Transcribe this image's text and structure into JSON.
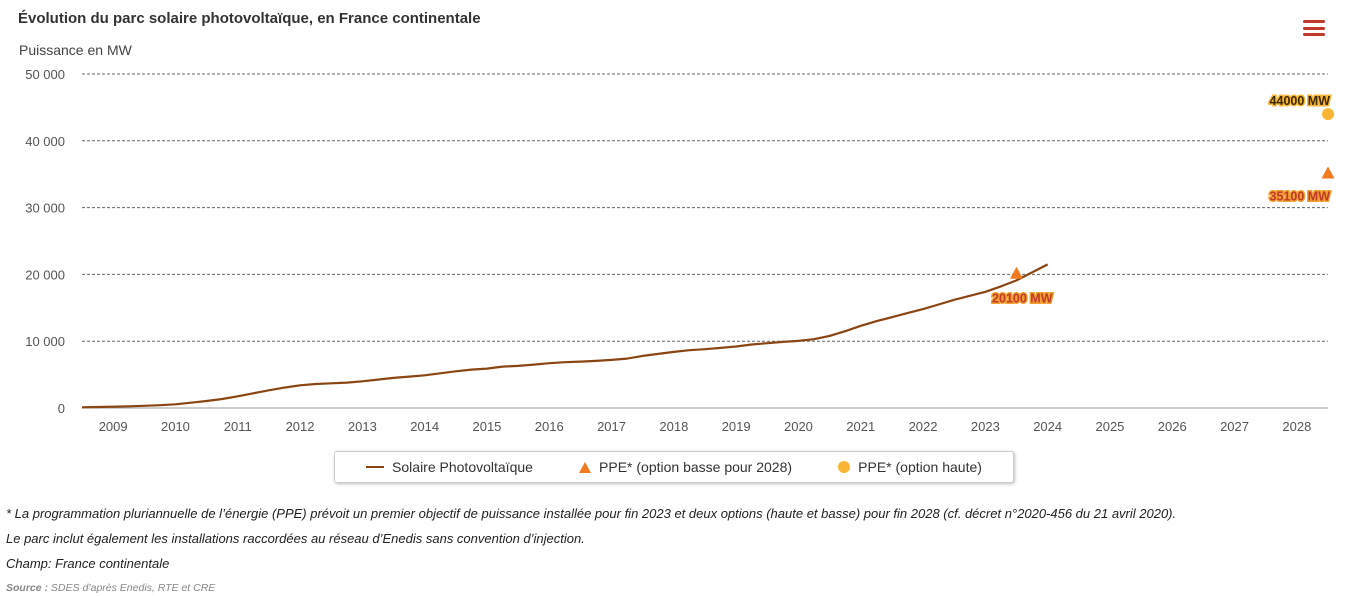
{
  "header": {
    "title": "Évolution du parc solaire photovoltaïque, en France continentale",
    "menu_icon": "hamburger-menu-icon"
  },
  "colors": {
    "line": "#8b4513",
    "triangle": "#f47a20",
    "dot": "#f9b533",
    "grid": "#666666",
    "label_text": "#c0392b"
  },
  "chart_data": {
    "type": "line",
    "title": "Évolution du parc solaire photovoltaïque, en France continentale",
    "ylabel": "Puissance en MW",
    "xlabel": "",
    "ylim": [
      0,
      50000
    ],
    "yticks": [
      0,
      10000,
      20000,
      30000,
      40000,
      50000
    ],
    "ytick_labels": [
      "0",
      "10 000",
      "20 000",
      "30 000",
      "40 000",
      "50 000"
    ],
    "xlim": [
      2008.5,
      2028.5
    ],
    "xticks": [
      2009,
      2010,
      2011,
      2012,
      2013,
      2014,
      2015,
      2016,
      2017,
      2018,
      2019,
      2020,
      2021,
      2022,
      2023,
      2024,
      2025,
      2026,
      2027,
      2028
    ],
    "grid": true,
    "series": [
      {
        "name": "Solaire Photovoltaïque",
        "kind": "line",
        "x": [
          2008.5,
          2008.75,
          2009.0,
          2009.25,
          2009.5,
          2009.75,
          2010.0,
          2010.25,
          2010.5,
          2010.75,
          2011.0,
          2011.25,
          2011.5,
          2011.75,
          2012.0,
          2012.25,
          2012.5,
          2012.75,
          2013.0,
          2013.25,
          2013.5,
          2013.75,
          2014.0,
          2014.25,
          2014.5,
          2014.75,
          2015.0,
          2015.25,
          2015.5,
          2015.75,
          2016.0,
          2016.25,
          2016.5,
          2016.75,
          2017.0,
          2017.25,
          2017.5,
          2017.75,
          2018.0,
          2018.25,
          2018.5,
          2018.75,
          2019.0,
          2019.25,
          2019.5,
          2019.75,
          2020.0,
          2020.25,
          2020.5,
          2020.75,
          2021.0,
          2021.25,
          2021.5,
          2021.75,
          2022.0,
          2022.25,
          2022.5,
          2022.75,
          2023.0,
          2023.25,
          2023.5,
          2023.75,
          2024.0
        ],
        "values": [
          100,
          150,
          200,
          250,
          330,
          420,
          550,
          800,
          1050,
          1350,
          1750,
          2200,
          2650,
          3050,
          3400,
          3600,
          3700,
          3800,
          4000,
          4250,
          4500,
          4700,
          4900,
          5200,
          5500,
          5750,
          5900,
          6200,
          6300,
          6500,
          6700,
          6850,
          6950,
          7050,
          7200,
          7400,
          7800,
          8100,
          8400,
          8650,
          8800,
          9000,
          9200,
          9500,
          9700,
          9900,
          10050,
          10300,
          10800,
          11500,
          12300,
          13000,
          13600,
          14200,
          14800,
          15500,
          16200,
          16800,
          17400,
          18200,
          19100,
          20300,
          21500
        ]
      },
      {
        "name": "PPE* (option basse pour 2028)",
        "kind": "triangle",
        "points": [
          {
            "x": 2023.5,
            "y": 20100,
            "label": "20100 MW"
          },
          {
            "x": 2028.5,
            "y": 35100,
            "label": "35100 MW"
          }
        ]
      },
      {
        "name": "PPE* (option haute)",
        "kind": "dot",
        "points": [
          {
            "x": 2028.5,
            "y": 44000,
            "label": "44000 MW"
          }
        ]
      }
    ]
  },
  "legend": {
    "items": [
      {
        "label": "Solaire Photovoltaïque"
      },
      {
        "label": "PPE* (option basse pour 2028)"
      },
      {
        "label": "PPE* (option haute)"
      }
    ]
  },
  "notes": {
    "line1": "* La programmation pluriannuelle de l’énergie (PPE) prévoit un premier objectif de puissance installée pour fin 2023 et deux options (haute et basse) pour fin 2028 (cf. décret n°2020-456 du 21 avril 2020).",
    "line2": "Le parc inclut également les installations raccordées au réseau d’Enedis sans convention d’injection.",
    "line3": "Champ: France continentale"
  },
  "source": {
    "label": "Source :",
    "text": " SDES d’après Enedis, RTE et CRE"
  }
}
